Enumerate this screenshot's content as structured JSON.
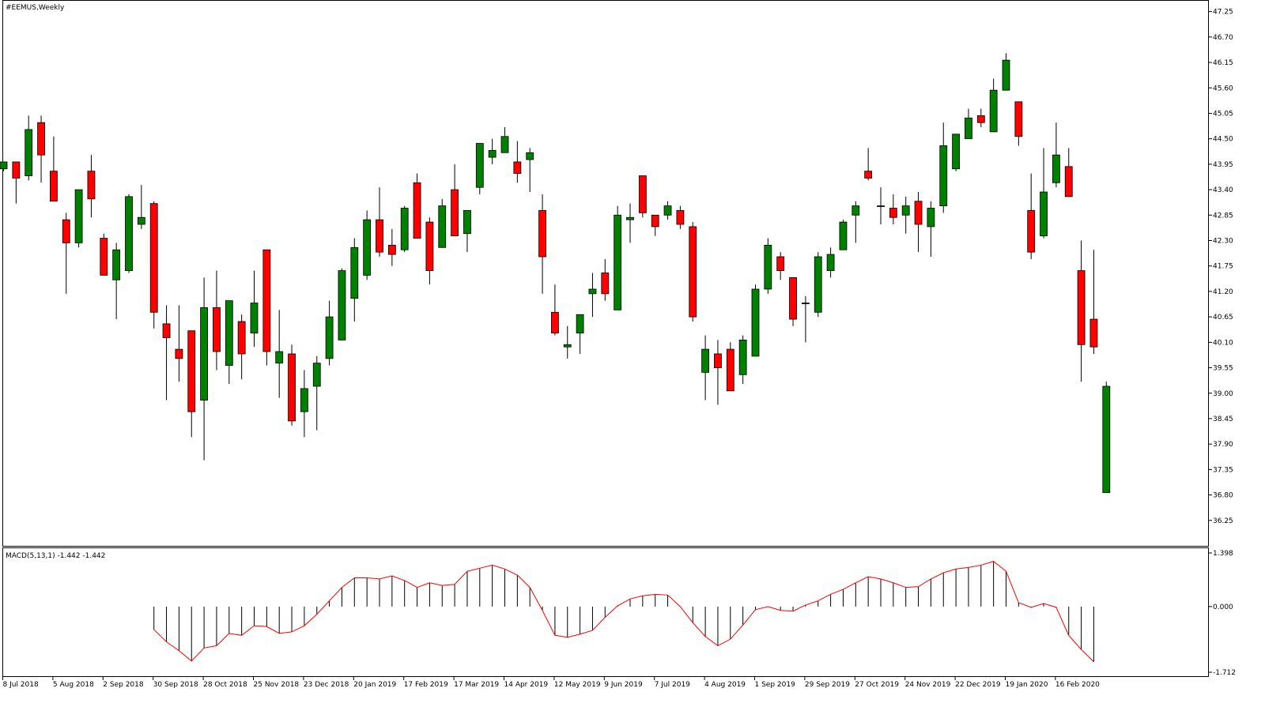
{
  "title": "#EEMUS,Weekly",
  "macd": {
    "label": "MACD(5,13,1) -1.442 -1.442",
    "y_ticks": [
      "1.398",
      "0.000",
      "-1.712"
    ],
    "ylim": [
      -1.712,
      1.398
    ]
  },
  "colors": {
    "up": "#008000",
    "down": "#ff0000",
    "wick": "#000000",
    "signal": "#ff0000",
    "histogram": "#000000",
    "frame": "#000000"
  },
  "chart_data": {
    "type": "candlestick",
    "symbol": "#EEMUS",
    "timeframe": "Weekly",
    "ylim": [
      35.7,
      47.5
    ],
    "y_ticks": [
      "47.25",
      "46.70",
      "46.15",
      "45.60",
      "45.05",
      "44.50",
      "43.95",
      "43.40",
      "42.85",
      "42.30",
      "41.75",
      "41.20",
      "40.65",
      "40.10",
      "39.55",
      "39.00",
      "38.45",
      "37.90",
      "37.35",
      "36.80",
      "36.25"
    ],
    "x_ticks": [
      {
        "i": 0,
        "label": "8 Jul 2018"
      },
      {
        "i": 4,
        "label": "5 Aug 2018"
      },
      {
        "i": 8,
        "label": "2 Sep 2018"
      },
      {
        "i": 12,
        "label": "30 Sep 2018"
      },
      {
        "i": 16,
        "label": "28 Oct 2018"
      },
      {
        "i": 20,
        "label": "25 Nov 2018"
      },
      {
        "i": 24,
        "label": "23 Dec 2018"
      },
      {
        "i": 28,
        "label": "20 Jan 2019"
      },
      {
        "i": 32,
        "label": "17 Feb 2019"
      },
      {
        "i": 36,
        "label": "17 Mar 2019"
      },
      {
        "i": 40,
        "label": "14 Apr 2019"
      },
      {
        "i": 44,
        "label": "12 May 2019"
      },
      {
        "i": 48,
        "label": "9 Jun 2019"
      },
      {
        "i": 52,
        "label": "7 Jul 2019"
      },
      {
        "i": 56,
        "label": "4 Aug 2019"
      },
      {
        "i": 60,
        "label": "1 Sep 2019"
      },
      {
        "i": 64,
        "label": "29 Sep 2019"
      },
      {
        "i": 68,
        "label": "27 Oct 2019"
      },
      {
        "i": 72,
        "label": "24 Nov 2019"
      },
      {
        "i": 76,
        "label": "22 Dec 2019"
      },
      {
        "i": 80,
        "label": "19 Jan 2020"
      },
      {
        "i": 84,
        "label": "16 Feb 2020"
      }
    ],
    "candles": [
      [
        43.85,
        44.0,
        43.8,
        44.0
      ],
      [
        44.0,
        44.0,
        43.1,
        43.65
      ],
      [
        43.7,
        45.0,
        43.6,
        44.7
      ],
      [
        44.85,
        45.0,
        43.55,
        44.15
      ],
      [
        43.8,
        44.55,
        43.15,
        43.15
      ],
      [
        42.75,
        42.9,
        41.15,
        42.25
      ],
      [
        42.25,
        43.4,
        42.15,
        43.4
      ],
      [
        43.8,
        44.15,
        42.8,
        43.2
      ],
      [
        42.35,
        42.45,
        41.55,
        41.55
      ],
      [
        41.45,
        42.25,
        40.6,
        42.1
      ],
      [
        41.65,
        43.3,
        41.6,
        43.25
      ],
      [
        42.65,
        43.5,
        42.55,
        42.8
      ],
      [
        43.1,
        43.15,
        40.4,
        40.75
      ],
      [
        40.5,
        40.9,
        38.85,
        40.2
      ],
      [
        39.95,
        40.9,
        39.25,
        39.75
      ],
      [
        40.35,
        40.35,
        38.05,
        38.6
      ],
      [
        38.85,
        41.5,
        37.55,
        40.85
      ],
      [
        40.85,
        41.65,
        39.5,
        39.9
      ],
      [
        39.6,
        41.0,
        39.2,
        41.0
      ],
      [
        40.55,
        40.7,
        39.3,
        39.85
      ],
      [
        40.3,
        41.65,
        40.0,
        40.95
      ],
      [
        42.1,
        42.1,
        39.6,
        39.9
      ],
      [
        39.65,
        40.8,
        38.9,
        39.9
      ],
      [
        39.85,
        40.05,
        38.3,
        38.4
      ],
      [
        38.6,
        39.5,
        38.05,
        39.1
      ],
      [
        39.15,
        39.8,
        38.2,
        39.65
      ],
      [
        39.75,
        41.0,
        39.6,
        40.65
      ],
      [
        40.15,
        41.7,
        40.15,
        41.65
      ],
      [
        41.05,
        42.35,
        40.55,
        42.15
      ],
      [
        41.55,
        42.95,
        41.45,
        42.75
      ],
      [
        42.75,
        43.45,
        41.95,
        42.05
      ],
      [
        42.2,
        42.55,
        41.75,
        42.0
      ],
      [
        42.1,
        43.05,
        42.05,
        43.0
      ],
      [
        43.55,
        43.75,
        42.35,
        42.35
      ],
      [
        42.7,
        42.8,
        41.35,
        41.65
      ],
      [
        42.15,
        43.2,
        42.15,
        43.05
      ],
      [
        43.4,
        43.95,
        42.4,
        42.4
      ],
      [
        42.45,
        42.95,
        42.05,
        42.95
      ],
      [
        43.45,
        44.4,
        43.3,
        44.4
      ],
      [
        44.1,
        44.5,
        43.95,
        44.25
      ],
      [
        44.2,
        44.75,
        44.2,
        44.55
      ],
      [
        44.0,
        44.45,
        43.55,
        43.75
      ],
      [
        44.05,
        44.3,
        43.35,
        44.2
      ],
      [
        42.95,
        43.3,
        41.15,
        41.95
      ],
      [
        40.75,
        41.35,
        40.25,
        40.3
      ],
      [
        40.0,
        40.45,
        39.75,
        40.05
      ],
      [
        40.3,
        40.7,
        39.85,
        40.7
      ],
      [
        41.15,
        41.6,
        40.65,
        41.25
      ],
      [
        41.6,
        41.9,
        41.0,
        41.15
      ],
      [
        40.8,
        43.05,
        40.8,
        42.85
      ],
      [
        42.75,
        43.1,
        42.25,
        42.8
      ],
      [
        43.7,
        43.7,
        42.8,
        42.9
      ],
      [
        42.85,
        42.85,
        42.4,
        42.6
      ],
      [
        42.85,
        43.15,
        42.75,
        43.05
      ],
      [
        42.95,
        43.05,
        42.55,
        42.65
      ],
      [
        42.6,
        42.7,
        40.55,
        40.65
      ],
      [
        39.45,
        40.25,
        38.85,
        39.95
      ],
      [
        39.85,
        40.15,
        38.75,
        39.55
      ],
      [
        39.95,
        40.1,
        39.05,
        39.05
      ],
      [
        39.4,
        40.25,
        39.2,
        40.15
      ],
      [
        39.8,
        41.35,
        39.8,
        41.25
      ],
      [
        41.25,
        42.35,
        41.15,
        42.2
      ],
      [
        41.95,
        42.05,
        41.45,
        41.65
      ],
      [
        41.5,
        41.5,
        40.45,
        40.6
      ],
      [
        40.95,
        41.1,
        40.1,
        40.95
      ],
      [
        40.75,
        42.05,
        40.65,
        41.95
      ],
      [
        41.65,
        42.15,
        41.5,
        42.0
      ],
      [
        42.1,
        42.75,
        42.1,
        42.7
      ],
      [
        42.85,
        43.15,
        42.25,
        43.05
      ],
      [
        43.8,
        44.3,
        43.6,
        43.65
      ],
      [
        43.05,
        43.45,
        42.65,
        43.05
      ],
      [
        43.0,
        43.3,
        42.65,
        42.8
      ],
      [
        42.85,
        43.25,
        42.45,
        43.05
      ],
      [
        43.15,
        43.35,
        42.05,
        42.65
      ],
      [
        42.6,
        43.15,
        41.95,
        43.0
      ],
      [
        43.05,
        44.85,
        42.9,
        44.35
      ],
      [
        43.85,
        44.6,
        43.8,
        44.6
      ],
      [
        44.5,
        45.15,
        44.5,
        44.95
      ],
      [
        45.0,
        45.15,
        44.75,
        44.85
      ],
      [
        44.65,
        45.8,
        44.65,
        45.55
      ],
      [
        45.55,
        46.35,
        45.55,
        46.2
      ],
      [
        45.3,
        45.3,
        44.35,
        44.55
      ],
      [
        42.95,
        43.75,
        41.9,
        42.05
      ],
      [
        42.4,
        44.3,
        42.35,
        43.35
      ],
      [
        43.55,
        44.85,
        43.45,
        44.15
      ],
      [
        43.9,
        44.3,
        43.25,
        43.25
      ],
      [
        41.65,
        42.3,
        39.25,
        40.05
      ],
      [
        40.6,
        42.1,
        39.85,
        40.0
      ],
      [
        36.85,
        39.25,
        36.85,
        39.15
      ]
    ],
    "macd_values": [
      null,
      null,
      null,
      null,
      null,
      null,
      null,
      null,
      null,
      null,
      null,
      null,
      -0.6,
      -0.92,
      -1.15,
      -1.42,
      -1.08,
      -1.02,
      -0.7,
      -0.75,
      -0.5,
      -0.52,
      -0.7,
      -0.66,
      -0.5,
      -0.2,
      0.15,
      0.5,
      0.75,
      0.75,
      0.72,
      0.8,
      0.68,
      0.5,
      0.62,
      0.55,
      0.58,
      0.92,
      1.0,
      1.08,
      0.98,
      0.82,
      0.5,
      -0.1,
      -0.75,
      -0.8,
      -0.72,
      -0.62,
      -0.28,
      0.02,
      0.2,
      0.28,
      0.32,
      0.3,
      0.0,
      -0.42,
      -0.78,
      -1.02,
      -0.85,
      -0.48,
      -0.08,
      0.0,
      -0.1,
      -0.12,
      0.04,
      0.15,
      0.32,
      0.45,
      0.62,
      0.78,
      0.72,
      0.62,
      0.5,
      0.52,
      0.72,
      0.88,
      0.98,
      1.02,
      1.08,
      1.18,
      0.92,
      0.1,
      -0.02,
      0.08,
      -0.02,
      -0.75,
      -1.12,
      -1.44
    ],
    "signal_values": [
      null,
      null,
      null,
      null,
      null,
      null,
      null,
      null,
      null,
      null,
      null,
      null,
      -0.6,
      -0.92,
      -1.15,
      -1.42,
      -1.08,
      -1.02,
      -0.7,
      -0.75,
      -0.5,
      -0.52,
      -0.7,
      -0.66,
      -0.5,
      -0.2,
      0.15,
      0.5,
      0.75,
      0.75,
      0.72,
      0.8,
      0.68,
      0.5,
      0.62,
      0.55,
      0.58,
      0.92,
      1.0,
      1.08,
      0.98,
      0.82,
      0.5,
      -0.1,
      -0.75,
      -0.8,
      -0.72,
      -0.62,
      -0.28,
      0.02,
      0.2,
      0.28,
      0.32,
      0.3,
      0.0,
      -0.42,
      -0.78,
      -1.02,
      -0.85,
      -0.48,
      -0.08,
      0.0,
      -0.1,
      -0.12,
      0.04,
      0.15,
      0.32,
      0.45,
      0.62,
      0.78,
      0.72,
      0.62,
      0.5,
      0.52,
      0.72,
      0.88,
      0.98,
      1.02,
      1.08,
      1.18,
      0.92,
      0.1,
      -0.02,
      0.08,
      -0.02,
      -0.75,
      -1.12,
      -1.44
    ]
  }
}
